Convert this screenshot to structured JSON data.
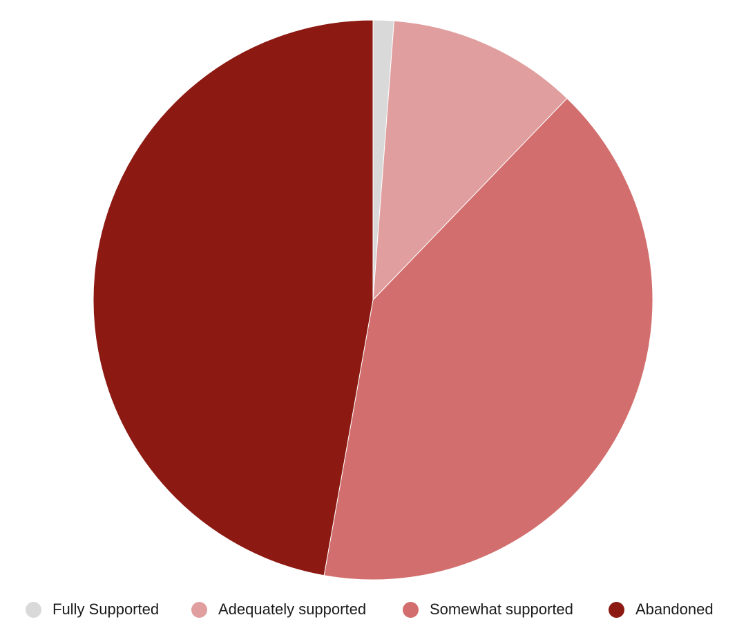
{
  "chart_data": {
    "type": "pie",
    "title": "",
    "start_angle": "12 o'clock",
    "direction": "clockwise",
    "legend_position": "bottom",
    "slices": [
      {
        "label": "Fully Supported",
        "value": 1.2,
        "color": "#d9d9d9"
      },
      {
        "label": "Adequately supported",
        "value": 11.0,
        "color": "#e09e9e"
      },
      {
        "label": "Somewhat supported",
        "value": 40.6,
        "color": "#d26e6d"
      },
      {
        "label": "Abandoned",
        "value": 47.2,
        "color": "#8c1a12"
      }
    ]
  }
}
